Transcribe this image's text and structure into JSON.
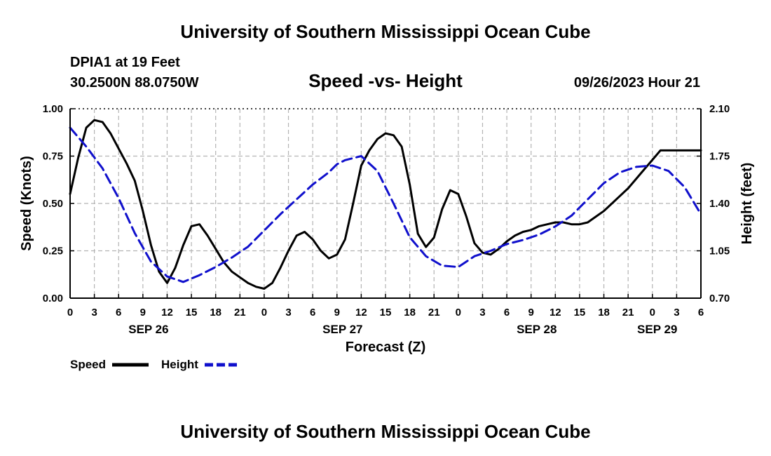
{
  "page_title": "University of Southern Mississippi Ocean Cube",
  "footer_title": "University of Southern Mississippi Ocean Cube",
  "station": "DPIA1 at 19 Feet",
  "location": "30.2500N  88.0750W",
  "timestamp": "09/26/2023 Hour 21",
  "chart_data": {
    "type": "line",
    "title": "Speed -vs- Height",
    "xlabel": "Forecast (Z)",
    "ylabel": "Speed (Knots)",
    "y2label": "Height (feet)",
    "x_range": [
      0,
      78
    ],
    "ylim": [
      0,
      1.0
    ],
    "y2lim": [
      0.7,
      2.1
    ],
    "grid": true,
    "x_tick_values": [
      0,
      3,
      6,
      9,
      12,
      15,
      18,
      21,
      24,
      27,
      30,
      33,
      36,
      39,
      42,
      45,
      48,
      51,
      54,
      57,
      60,
      63,
      66,
      69,
      72,
      75,
      78
    ],
    "x_tick_labels": [
      "0",
      "3",
      "6",
      "9",
      "12",
      "15",
      "18",
      "21",
      "0",
      "3",
      "6",
      "9",
      "12",
      "15",
      "18",
      "21",
      "0",
      "3",
      "6",
      "9",
      "12",
      "15",
      "18",
      "21",
      "0",
      "3",
      "6"
    ],
    "y_tick_values": [
      0,
      0.25,
      0.5,
      0.75,
      1.0
    ],
    "y_tick_labels": [
      "0.00",
      "0.25",
      "0.50",
      "0.75",
      "1.00"
    ],
    "y2_tick_values": [
      0.7,
      1.05,
      1.4,
      1.75,
      2.1
    ],
    "y2_tick_labels": [
      "0.70",
      "1.05",
      "1.40",
      "1.75",
      "2.10"
    ],
    "date_labels": [
      {
        "x": 9.7,
        "label": "SEP 26"
      },
      {
        "x": 33.7,
        "label": "SEP 27"
      },
      {
        "x": 57.7,
        "label": "SEP 28"
      },
      {
        "x": 72.6,
        "label": "SEP 29"
      }
    ],
    "legend": [
      {
        "name": "Speed",
        "color": "#000000",
        "dash": "solid"
      },
      {
        "name": "Height",
        "color": "#1010cc",
        "dash": "dashed"
      }
    ],
    "series": [
      {
        "name": "Speed",
        "axis": "left",
        "color": "#000000",
        "x": [
          0,
          1,
          2,
          3,
          4,
          5,
          6,
          7,
          8,
          9,
          10,
          11,
          12,
          13,
          14,
          15,
          16,
          17,
          18,
          19,
          20,
          21,
          22,
          23,
          24,
          25,
          26,
          27,
          28,
          29,
          30,
          31,
          32,
          33,
          34,
          35,
          36,
          37,
          38,
          39,
          40,
          41,
          42,
          43,
          44,
          45,
          46,
          47,
          48,
          49,
          50,
          51,
          52,
          53,
          54,
          55,
          56,
          57,
          58,
          59,
          60,
          61,
          62,
          63,
          64,
          65,
          66,
          67,
          68,
          69,
          70,
          71,
          72,
          73,
          74,
          75,
          76,
          77,
          78
        ],
        "values": [
          0.55,
          0.74,
          0.9,
          0.94,
          0.93,
          0.87,
          0.79,
          0.71,
          0.62,
          0.46,
          0.28,
          0.14,
          0.08,
          0.16,
          0.28,
          0.38,
          0.39,
          0.33,
          0.26,
          0.19,
          0.14,
          0.11,
          0.08,
          0.06,
          0.05,
          0.08,
          0.16,
          0.25,
          0.33,
          0.35,
          0.31,
          0.25,
          0.21,
          0.23,
          0.31,
          0.5,
          0.7,
          0.78,
          0.84,
          0.87,
          0.86,
          0.8,
          0.6,
          0.34,
          0.27,
          0.32,
          0.47,
          0.57,
          0.55,
          0.43,
          0.29,
          0.24,
          0.23,
          0.26,
          0.3,
          0.33,
          0.35,
          0.36,
          0.38,
          0.39,
          0.4,
          0.4,
          0.39,
          0.39,
          0.4,
          0.43,
          0.46,
          0.5,
          0.54,
          0.58,
          0.63,
          0.68,
          0.73,
          0.78,
          0.78,
          0.78,
          0.78,
          0.78,
          0.78
        ]
      },
      {
        "name": "Height",
        "axis": "right",
        "color": "#1010cc",
        "x": [
          0,
          2,
          4,
          6,
          8,
          10,
          12,
          14,
          16,
          18,
          20,
          22,
          24,
          26,
          28,
          30,
          32,
          33,
          34,
          36,
          38,
          40,
          42,
          44,
          46,
          48,
          50,
          52,
          54,
          56,
          58,
          60,
          62,
          64,
          66,
          68,
          70,
          72,
          74,
          76,
          78
        ],
        "values": [
          1.96,
          1.82,
          1.66,
          1.44,
          1.18,
          0.97,
          0.86,
          0.82,
          0.87,
          0.93,
          1.0,
          1.08,
          1.2,
          1.32,
          1.43,
          1.54,
          1.63,
          1.69,
          1.72,
          1.75,
          1.64,
          1.4,
          1.15,
          1.01,
          0.94,
          0.93,
          1.01,
          1.05,
          1.1,
          1.13,
          1.17,
          1.23,
          1.31,
          1.43,
          1.55,
          1.63,
          1.67,
          1.68,
          1.64,
          1.52,
          1.32
        ]
      }
    ]
  }
}
